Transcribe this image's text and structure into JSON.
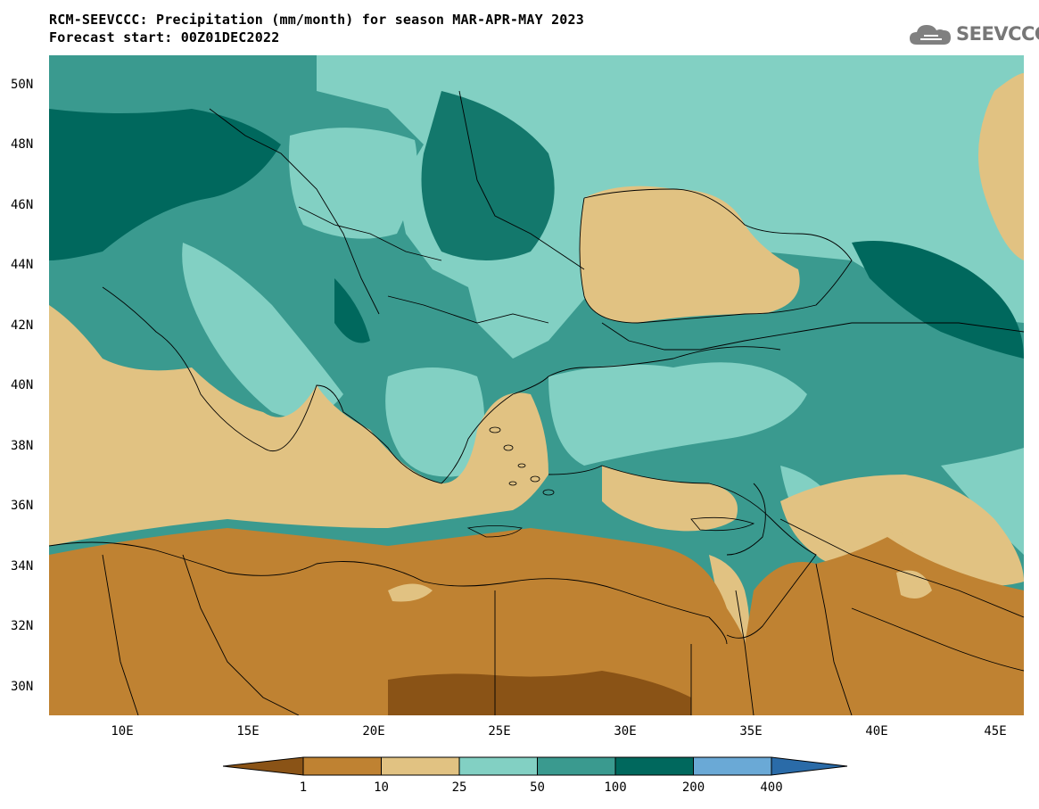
{
  "title": "RCM-SEEVCCC: Precipitation (mm/month) for season MAR-APR-MAY 2023",
  "subtitle": "Forecast start: 00Z01DEC2022",
  "logo": {
    "text": "SEEVCCC",
    "icon": "cloud-icon"
  },
  "map": {
    "latitude_labels": [
      "50N",
      "48N",
      "46N",
      "44N",
      "42N",
      "40N",
      "38N",
      "36N",
      "34N",
      "32N",
      "30N"
    ],
    "longitude_labels": [
      "10E",
      "15E",
      "20E",
      "25E",
      "30E",
      "35E",
      "40E",
      "45E"
    ]
  },
  "legend": {
    "colors": [
      "#8a5316",
      "#bf8232",
      "#e1c282",
      "#82d0c3",
      "#3a9a8f",
      "#00685d",
      "#6aa9d6",
      "#2a6ba8"
    ],
    "labels": [
      "1",
      "10",
      "25",
      "50",
      "100",
      "200",
      "400"
    ]
  }
}
